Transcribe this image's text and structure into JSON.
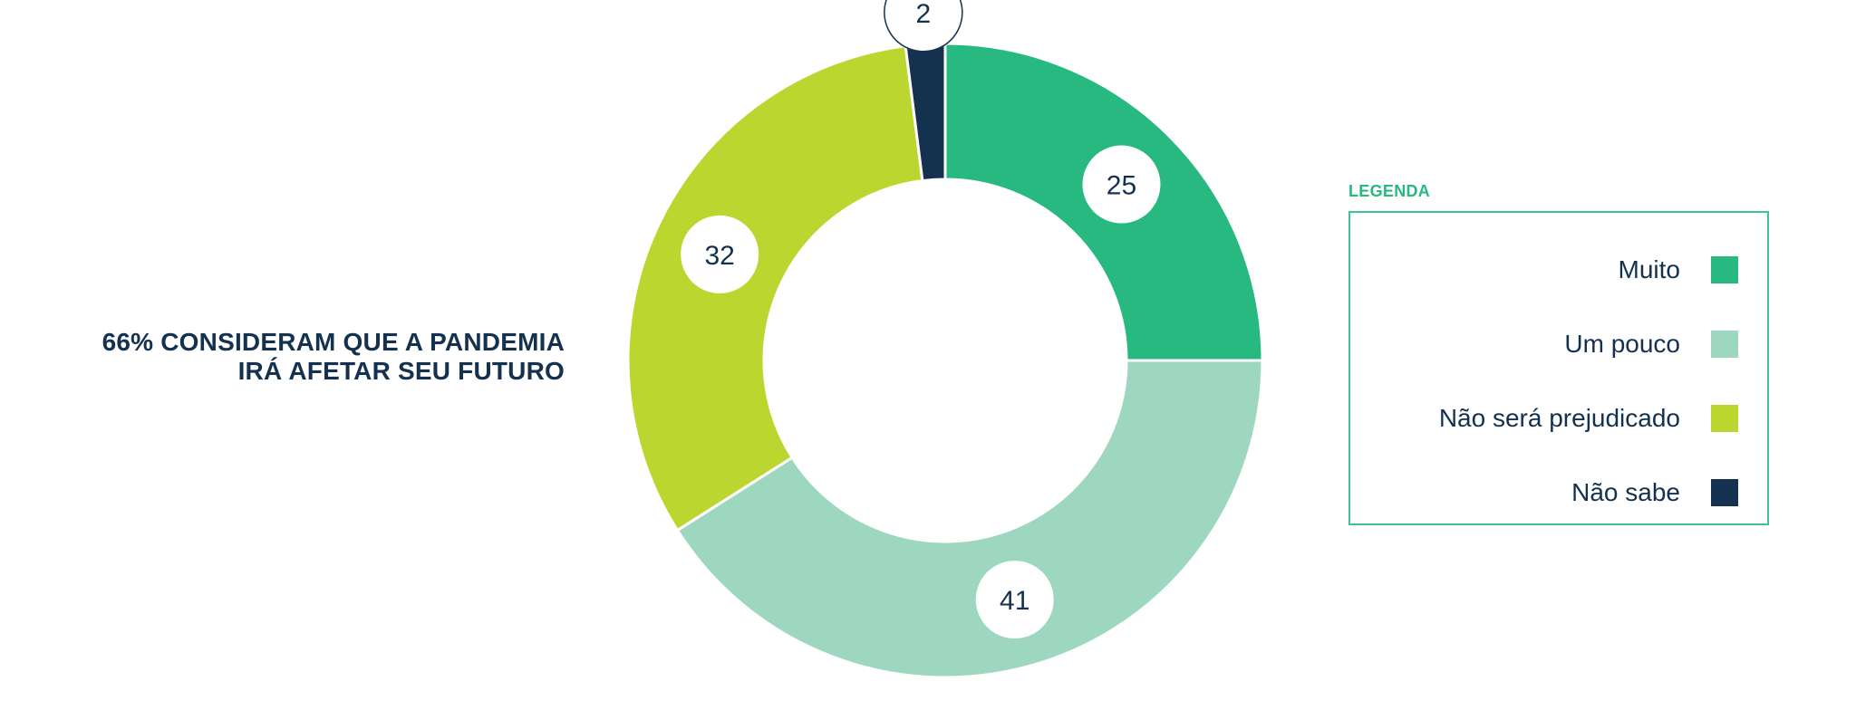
{
  "headline": {
    "line1": "66% CONSIDERAM QUE A PANDEMIA",
    "line2": "IRÁ AFETAR SEU FUTURO"
  },
  "legend": {
    "title": "LEGENDA"
  },
  "chart_data": {
    "type": "pie",
    "variant": "donut",
    "legend_position": "right",
    "categories": [
      "Muito",
      "Um pouco",
      "Não será prejudicado",
      "Não sabe"
    ],
    "values": [
      25,
      41,
      32,
      2
    ],
    "value_labels": [
      "25",
      "41",
      "32",
      "2"
    ],
    "colors": [
      "#27b97f",
      "#9dd7c0",
      "#bcd630",
      "#14314f"
    ]
  }
}
